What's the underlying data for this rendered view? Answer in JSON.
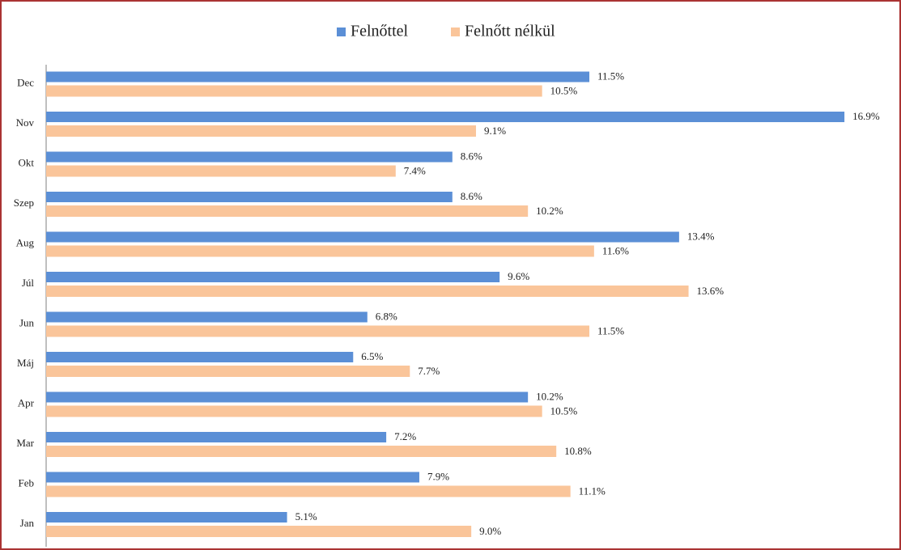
{
  "chart_data": {
    "type": "bar",
    "orientation": "horizontal",
    "categories": [
      "Jan",
      "Feb",
      "Mar",
      "Apr",
      "Máj",
      "Jun",
      "Júl",
      "Aug",
      "Szep",
      "Okt",
      "Nov",
      "Dec"
    ],
    "series": [
      {
        "name": "Felnőttel",
        "color": "#5b8fd6",
        "values": [
          5.1,
          7.9,
          7.2,
          10.2,
          6.5,
          6.8,
          9.6,
          13.4,
          8.6,
          8.6,
          16.9,
          11.5
        ],
        "value_labels": [
          "5.1%",
          "7.9%",
          "7.2%",
          "10.2%",
          "6.5%",
          "6.8%",
          "9.6%",
          "13.4%",
          "8.6%",
          "8.6%",
          "16.9%",
          "11.5%"
        ]
      },
      {
        "name": "Felnőtt nélkül",
        "color": "#fac59a",
        "values": [
          9.0,
          11.1,
          10.8,
          10.5,
          7.7,
          11.5,
          13.6,
          11.6,
          10.2,
          7.4,
          9.1,
          10.5
        ],
        "value_labels": [
          "9.0%",
          "11.1%",
          "10.8%",
          "10.5%",
          "7.7%",
          "11.5%",
          "13.6%",
          "11.6%",
          "10.2%",
          "7.4%",
          "9.1%",
          "10.5%"
        ]
      }
    ],
    "legend": "top"
  }
}
